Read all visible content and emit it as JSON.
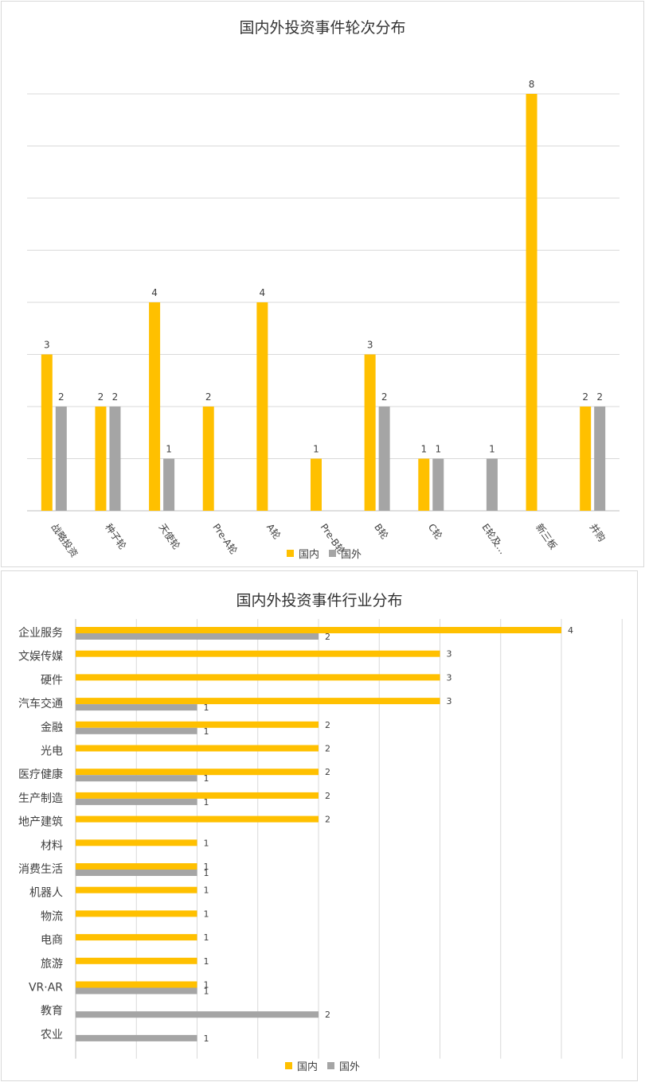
{
  "colors": {
    "domestic": "#FFC000",
    "foreign": "#A5A5A5",
    "grid": "#d9d9d9"
  },
  "chart_data": [
    {
      "type": "bar",
      "title": "国内外投资事件轮次分布",
      "categories": [
        "战略投资",
        "种子轮",
        "天使轮",
        "Pre-A轮",
        "A轮",
        "Pre-B轮",
        "B轮",
        "C轮",
        "E轮及...",
        "新三板",
        "并购"
      ],
      "series": [
        {
          "name": "国内",
          "values": [
            3,
            2,
            4,
            2,
            4,
            1,
            3,
            1,
            null,
            8,
            2
          ]
        },
        {
          "name": "国外",
          "values": [
            2,
            2,
            1,
            null,
            null,
            null,
            2,
            1,
            1,
            null,
            2
          ]
        }
      ],
      "ylim": [
        0,
        8
      ],
      "grid": true,
      "legend": "bottom"
    },
    {
      "type": "bar",
      "orientation": "horizontal",
      "title": "国内外投资事件行业分布",
      "categories": [
        "企业服务",
        "文娱传媒",
        "硬件",
        "汽车交通",
        "金融",
        "光电",
        "医疗健康",
        "生产制造",
        "地产建筑",
        "材料",
        "消费生活",
        "机器人",
        "物流",
        "电商",
        "旅游",
        "VR·AR",
        "教育",
        "农业"
      ],
      "series": [
        {
          "name": "国内",
          "values": [
            4,
            3,
            3,
            3,
            2,
            2,
            2,
            2,
            2,
            1,
            1,
            1,
            1,
            1,
            1,
            1,
            null,
            null
          ]
        },
        {
          "name": "国外",
          "values": [
            2,
            null,
            null,
            1,
            1,
            null,
            1,
            1,
            null,
            null,
            1,
            null,
            null,
            null,
            null,
            1,
            2,
            1
          ]
        }
      ],
      "xlim": [
        0,
        4.6
      ],
      "grid": true,
      "legend": "bottom"
    }
  ]
}
